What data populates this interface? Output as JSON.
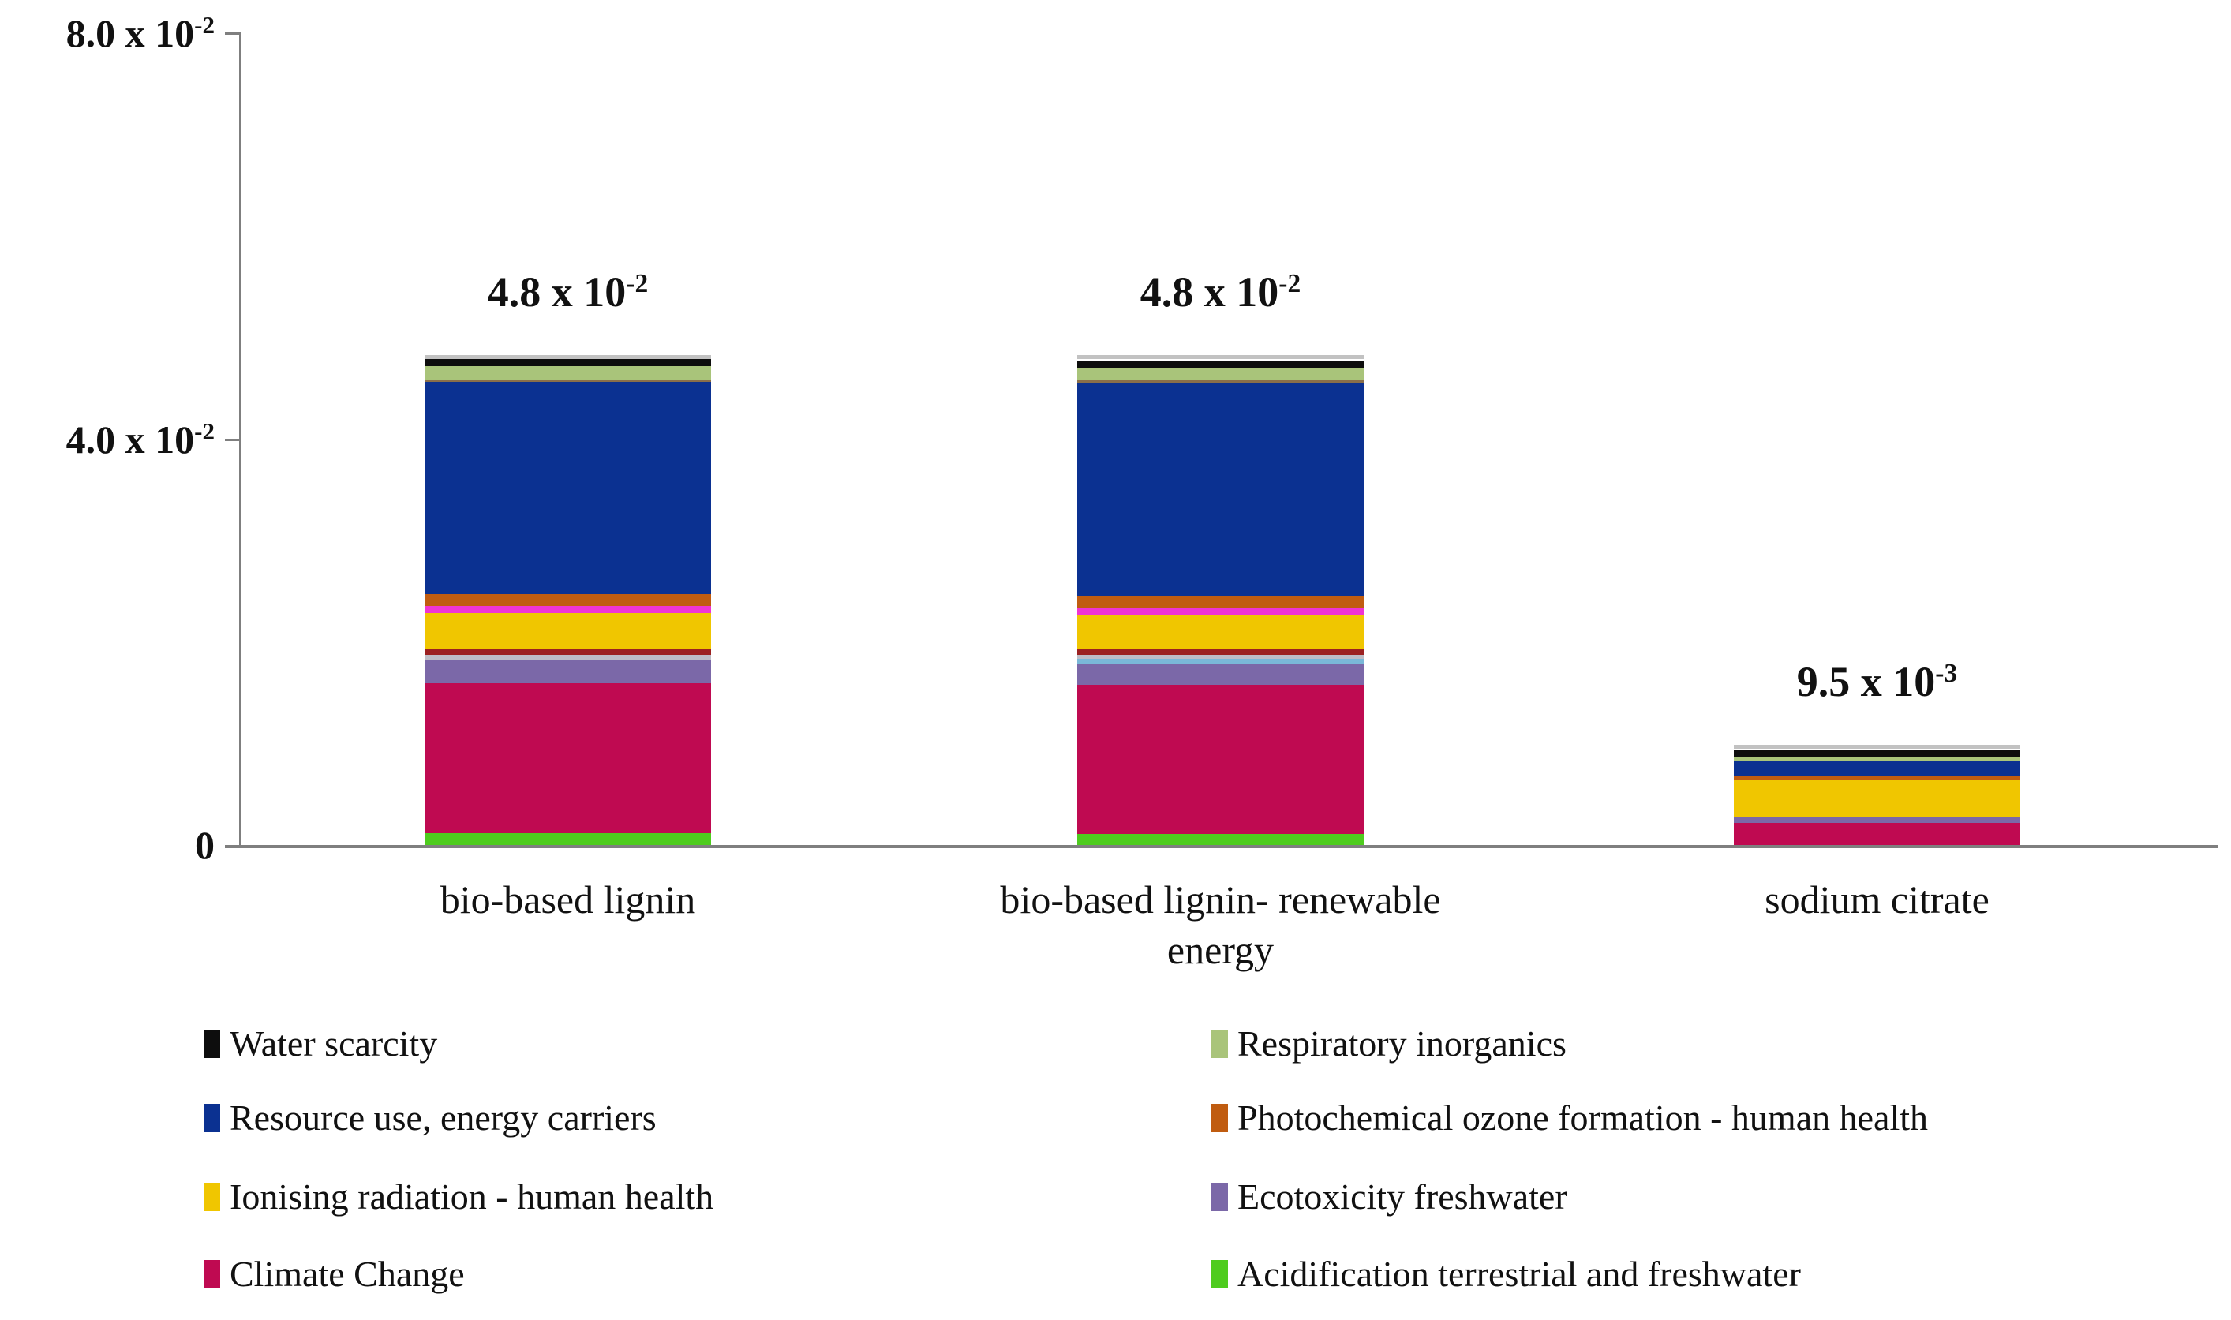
{
  "chart_data": {
    "type": "bar",
    "stacked": true,
    "title": "",
    "xlabel": "",
    "ylabel": "",
    "ylim": [
      0,
      0.08
    ],
    "grid": false,
    "legend_position": "bottom",
    "axis_color": "#7f7f7f",
    "categories": [
      "bio-based lignin",
      "bio-based lignin- renewable energy",
      "sodium citrate"
    ],
    "category_label_lines": [
      [
        "bio-based lignin"
      ],
      [
        "bio-based lignin- renewable",
        "energy"
      ],
      [
        "sodium citrate"
      ]
    ],
    "bar_totals": [
      0.048,
      0.048,
      0.0095
    ],
    "bar_total_labels": [
      {
        "text": "4.8 x 10",
        "sup": "-2"
      },
      {
        "text": "4.8 x 10",
        "sup": "-2"
      },
      {
        "text": "9.5 x 10",
        "sup": "-3"
      }
    ],
    "yticks": [
      {
        "value": 0.08,
        "text": "8.0 x 10",
        "sup": "-2"
      },
      {
        "value": 0.04,
        "text": "4.0 x 10",
        "sup": "-2"
      },
      {
        "value": 0,
        "text": "0",
        "sup": ""
      }
    ],
    "series": [
      {
        "name": "Acidification terrestrial and freshwater",
        "color": "#4ecc1e",
        "values": [
          0.0012,
          0.0011,
          0
        ]
      },
      {
        "name": "Climate Change",
        "color": "#bf0a51",
        "values": [
          0.0148,
          0.0147,
          0.0022
        ]
      },
      {
        "name": "Ecotoxicity freshwater",
        "color": "#7b68a8",
        "values": [
          0.0023,
          0.0021,
          0.0006
        ]
      },
      {
        "name": "unlabeled-light-blue",
        "color": "#7ab8d8",
        "values": [
          0,
          0.0005,
          0
        ]
      },
      {
        "name": "unlabeled-silver",
        "color": "#bdbdc6",
        "values": [
          0.0005,
          0.0004,
          0
        ]
      },
      {
        "name": "unlabeled-maroon",
        "color": "#9c2121",
        "values": [
          0.0006,
          0.0006,
          0
        ]
      },
      {
        "name": "Ionising radiation - human health",
        "color": "#f0c600",
        "values": [
          0.0035,
          0.0033,
          0.0036
        ]
      },
      {
        "name": "unlabeled-magenta",
        "color": "#ef34d3",
        "values": [
          0.0007,
          0.0007,
          0
        ]
      },
      {
        "name": "Photochemical ozone formation - human health",
        "color": "#c05c10",
        "values": [
          0.0012,
          0.0012,
          0.0004
        ]
      },
      {
        "name": "Resource use, energy carriers",
        "color": "#0b3191",
        "values": [
          0.0209,
          0.021,
          0.0015
        ]
      },
      {
        "name": "unlabeled-brown",
        "color": "#8a6f4a",
        "values": [
          0.0002,
          0.0003,
          0
        ]
      },
      {
        "name": "Respiratory inorganics",
        "color": "#a9c47a",
        "values": [
          0.0013,
          0.0012,
          0.0005
        ]
      },
      {
        "name": "Water scarcity",
        "color": "#0d0d0d",
        "values": [
          0.0007,
          0.0008,
          0.0007
        ]
      }
    ],
    "legend": [
      {
        "label": "Water scarcity",
        "color": "#0d0d0d"
      },
      {
        "label": "Respiratory inorganics",
        "color": "#a9c47a"
      },
      {
        "label": "Resource use, energy carriers",
        "color": "#0b3191"
      },
      {
        "label": "Photochemical ozone formation - human health",
        "color": "#c05c10"
      },
      {
        "label": "Ionising radiation - human health",
        "color": "#f0c600"
      },
      {
        "label": "Ecotoxicity freshwater",
        "color": "#7b68a8"
      },
      {
        "label": "Climate Change",
        "color": "#bf0a51"
      },
      {
        "label": "Acidification terrestrial and freshwater",
        "color": "#4ecc1e"
      }
    ]
  }
}
